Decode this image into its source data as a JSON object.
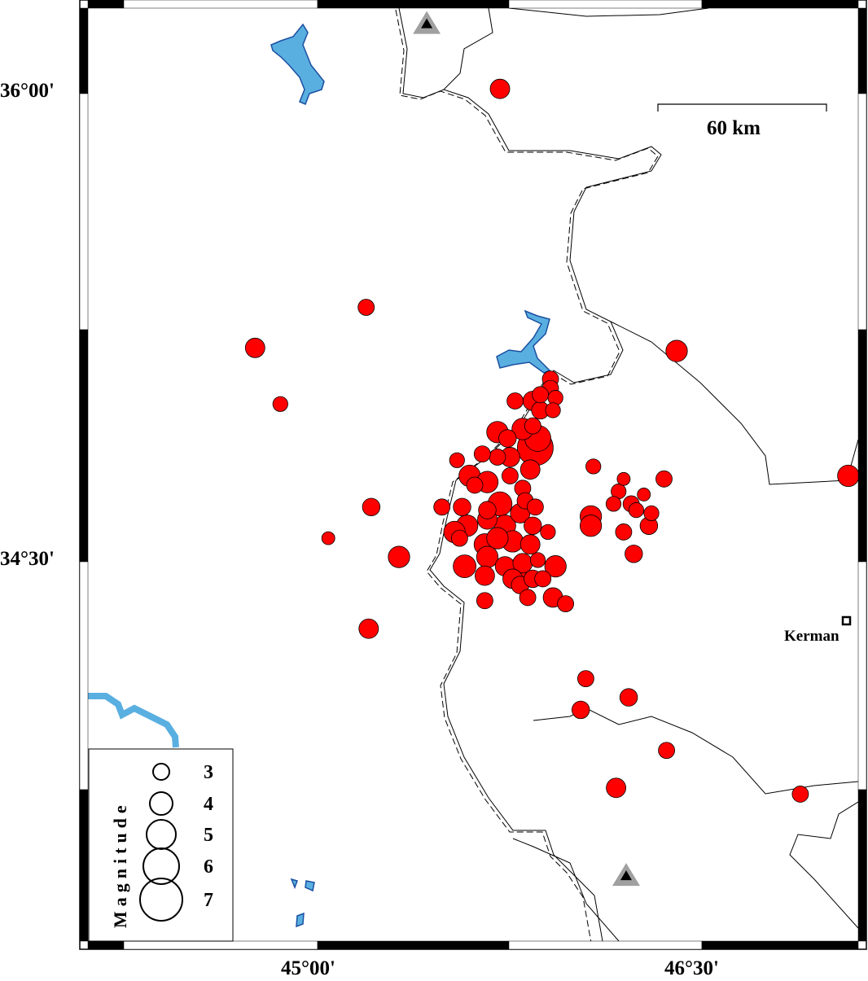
{
  "map": {
    "colors": {
      "event_fill": "#ff0000",
      "event_stroke": "#000000",
      "water": "#5aafe1",
      "water_edge": "#1a4fa0",
      "station_outer": "#a0a0a0",
      "station_inner": "#000000"
    },
    "lon_labels": [
      "45°00'",
      "46°30'"
    ],
    "lat_labels": [
      "36°00'",
      "34°30'"
    ],
    "scale_bar": {
      "label": "60 km"
    },
    "city": {
      "name": "Kerman",
      "icon": "square-marker-icon"
    },
    "stations": [
      {
        "icon": "triangle-station-icon",
        "lon": 45.41,
        "lat": 36.22
      },
      {
        "icon": "triangle-station-icon",
        "lon": 46.2,
        "lat": 33.49
      }
    ],
    "legend": {
      "title": "Magnitude",
      "entries": [
        {
          "mag": 3,
          "label": "3"
        },
        {
          "mag": 4,
          "label": "4"
        },
        {
          "mag": 5,
          "label": "5"
        },
        {
          "mag": 6,
          "label": "6"
        },
        {
          "mag": 7,
          "label": "7"
        }
      ]
    },
    "events": [
      {
        "lon": 45.7,
        "lat": 36.01,
        "mag": 3.5
      },
      {
        "lon": 45.17,
        "lat": 35.31,
        "mag": 3.0
      },
      {
        "lon": 44.73,
        "lat": 35.18,
        "mag": 3.5
      },
      {
        "lon": 44.83,
        "lat": 35.0,
        "mag": 2.8
      },
      {
        "lon": 46.4,
        "lat": 35.17,
        "mag": 3.8
      },
      {
        "lon": 47.08,
        "lat": 34.77,
        "mag": 3.8
      },
      {
        "lon": 45.19,
        "lat": 34.67,
        "mag": 3.2
      },
      {
        "lon": 45.02,
        "lat": 34.57,
        "mag": 2.5
      },
      {
        "lon": 45.3,
        "lat": 34.51,
        "mag": 3.8
      },
      {
        "lon": 45.18,
        "lat": 34.28,
        "mag": 3.5
      },
      {
        "lon": 46.04,
        "lat": 34.12,
        "mag": 3.0
      },
      {
        "lon": 46.21,
        "lat": 34.06,
        "mag": 3.2
      },
      {
        "lon": 46.02,
        "lat": 34.02,
        "mag": 3.2
      },
      {
        "lon": 46.36,
        "lat": 33.89,
        "mag": 3.0
      },
      {
        "lon": 46.16,
        "lat": 33.77,
        "mag": 3.5
      },
      {
        "lon": 46.89,
        "lat": 33.75,
        "mag": 3.0
      },
      {
        "lon": 46.07,
        "lat": 34.8,
        "mag": 2.8
      },
      {
        "lon": 46.35,
        "lat": 34.76,
        "mag": 3.0
      },
      {
        "lon": 46.19,
        "lat": 34.76,
        "mag": 2.5
      },
      {
        "lon": 46.17,
        "lat": 34.72,
        "mag": 2.8
      },
      {
        "lon": 46.27,
        "lat": 34.71,
        "mag": 2.5
      },
      {
        "lon": 46.15,
        "lat": 34.68,
        "mag": 2.8
      },
      {
        "lon": 46.22,
        "lat": 34.68,
        "mag": 3.0
      },
      {
        "lon": 46.24,
        "lat": 34.66,
        "mag": 2.8
      },
      {
        "lon": 46.3,
        "lat": 34.65,
        "mag": 2.8
      },
      {
        "lon": 46.06,
        "lat": 34.64,
        "mag": 3.8
      },
      {
        "lon": 46.06,
        "lat": 34.61,
        "mag": 3.8
      },
      {
        "lon": 46.29,
        "lat": 34.61,
        "mag": 3.2
      },
      {
        "lon": 46.19,
        "lat": 34.59,
        "mag": 3.0
      },
      {
        "lon": 46.23,
        "lat": 34.52,
        "mag": 3.2
      },
      {
        "lon": 45.84,
        "lat": 34.86,
        "mag": 6.0
      },
      {
        "lon": 45.9,
        "lat": 35.08,
        "mag": 3.0
      },
      {
        "lon": 45.9,
        "lat": 35.05,
        "mag": 3.0
      },
      {
        "lon": 45.86,
        "lat": 35.03,
        "mag": 3.0
      },
      {
        "lon": 45.92,
        "lat": 35.02,
        "mag": 2.8
      },
      {
        "lon": 45.91,
        "lat": 34.98,
        "mag": 2.8
      },
      {
        "lon": 45.76,
        "lat": 35.01,
        "mag": 3.0
      },
      {
        "lon": 45.83,
        "lat": 35.01,
        "mag": 3.5
      },
      {
        "lon": 45.86,
        "lat": 34.98,
        "mag": 3.2
      },
      {
        "lon": 45.83,
        "lat": 34.93,
        "mag": 3.0
      },
      {
        "lon": 45.79,
        "lat": 34.92,
        "mag": 3.8
      },
      {
        "lon": 45.85,
        "lat": 34.89,
        "mag": 4.5
      },
      {
        "lon": 45.69,
        "lat": 34.91,
        "mag": 3.8
      },
      {
        "lon": 45.73,
        "lat": 34.89,
        "mag": 3.2
      },
      {
        "lon": 45.69,
        "lat": 34.83,
        "mag": 3.0
      },
      {
        "lon": 45.63,
        "lat": 34.84,
        "mag": 3.0
      },
      {
        "lon": 45.74,
        "lat": 34.83,
        "mag": 3.5
      },
      {
        "lon": 45.82,
        "lat": 34.79,
        "mag": 3.5
      },
      {
        "lon": 45.53,
        "lat": 34.82,
        "mag": 2.8
      },
      {
        "lon": 45.58,
        "lat": 34.77,
        "mag": 3.8
      },
      {
        "lon": 45.65,
        "lat": 34.75,
        "mag": 3.8
      },
      {
        "lon": 45.74,
        "lat": 34.77,
        "mag": 3.0
      },
      {
        "lon": 45.6,
        "lat": 34.74,
        "mag": 3.0
      },
      {
        "lon": 45.79,
        "lat": 34.73,
        "mag": 3.0
      },
      {
        "lon": 45.7,
        "lat": 34.68,
        "mag": 4.2
      },
      {
        "lon": 45.47,
        "lat": 34.67,
        "mag": 3.0
      },
      {
        "lon": 45.55,
        "lat": 34.67,
        "mag": 3.2
      },
      {
        "lon": 45.65,
        "lat": 34.66,
        "mag": 3.2
      },
      {
        "lon": 45.8,
        "lat": 34.69,
        "mag": 3.0
      },
      {
        "lon": 45.84,
        "lat": 34.67,
        "mag": 3.0
      },
      {
        "lon": 45.78,
        "lat": 34.65,
        "mag": 3.5
      },
      {
        "lon": 45.57,
        "lat": 34.61,
        "mag": 3.8
      },
      {
        "lon": 45.65,
        "lat": 34.63,
        "mag": 3.5
      },
      {
        "lon": 45.72,
        "lat": 34.61,
        "mag": 3.8
      },
      {
        "lon": 45.83,
        "lat": 34.61,
        "mag": 3.2
      },
      {
        "lon": 45.89,
        "lat": 34.59,
        "mag": 2.8
      },
      {
        "lon": 45.52,
        "lat": 34.59,
        "mag": 3.8
      },
      {
        "lon": 45.54,
        "lat": 34.57,
        "mag": 3.0
      },
      {
        "lon": 45.64,
        "lat": 34.55,
        "mag": 3.8
      },
      {
        "lon": 45.75,
        "lat": 34.56,
        "mag": 3.8
      },
      {
        "lon": 45.69,
        "lat": 34.57,
        "mag": 3.8
      },
      {
        "lon": 45.82,
        "lat": 34.55,
        "mag": 3.5
      },
      {
        "lon": 45.56,
        "lat": 34.48,
        "mag": 4.0
      },
      {
        "lon": 45.65,
        "lat": 34.51,
        "mag": 3.8
      },
      {
        "lon": 45.72,
        "lat": 34.48,
        "mag": 3.5
      },
      {
        "lon": 45.79,
        "lat": 34.49,
        "mag": 3.5
      },
      {
        "lon": 45.85,
        "lat": 34.5,
        "mag": 2.8
      },
      {
        "lon": 45.92,
        "lat": 34.48,
        "mag": 3.8
      },
      {
        "lon": 45.64,
        "lat": 34.45,
        "mag": 3.5
      },
      {
        "lon": 45.75,
        "lat": 34.44,
        "mag": 3.5
      },
      {
        "lon": 45.78,
        "lat": 34.42,
        "mag": 3.2
      },
      {
        "lon": 45.83,
        "lat": 34.44,
        "mag": 3.2
      },
      {
        "lon": 45.87,
        "lat": 34.44,
        "mag": 3.0
      },
      {
        "lon": 45.81,
        "lat": 34.38,
        "mag": 3.0
      },
      {
        "lon": 45.91,
        "lat": 34.38,
        "mag": 3.5
      },
      {
        "lon": 45.96,
        "lat": 34.36,
        "mag": 3.0
      },
      {
        "lon": 45.64,
        "lat": 34.37,
        "mag": 3.0
      },
      {
        "lon": 45.77,
        "lat": 34.47,
        "mag": 3.8
      }
    ]
  }
}
